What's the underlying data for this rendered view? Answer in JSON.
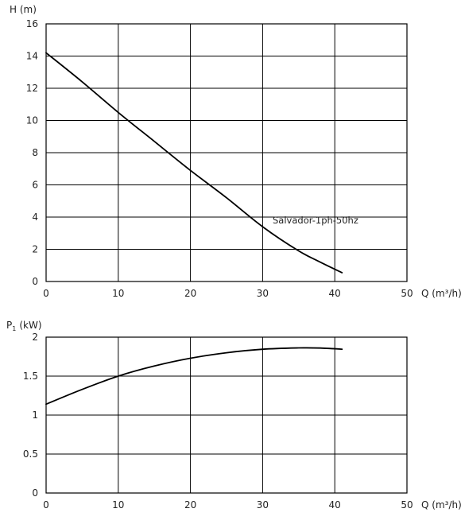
{
  "chart_data": [
    {
      "type": "line",
      "title": "",
      "xlabel": "Q (m³/h)",
      "ylabel": "H (m)",
      "xlim": [
        0,
        50
      ],
      "ylim": [
        0,
        16
      ],
      "x_ticks": [
        "0",
        "10",
        "20",
        "30",
        "40",
        "50"
      ],
      "y_ticks": [
        "0",
        "2",
        "4",
        "6",
        "8",
        "10",
        "12",
        "14",
        "16"
      ],
      "grid": true,
      "annotation": "Salvador-1ph-50hz",
      "series": [
        {
          "name": "",
          "x": [
            0,
            5,
            10,
            15,
            20,
            25,
            30,
            35,
            38,
            41
          ],
          "y": [
            14.2,
            12.4,
            10.5,
            8.7,
            6.9,
            5.2,
            3.4,
            1.9,
            1.2,
            0.55
          ]
        }
      ]
    },
    {
      "type": "line",
      "title": "",
      "xlabel": "Q (m³/h)",
      "ylabel": "P",
      "ylabel_subscript": "1",
      "ylabel_unit": "(kW)",
      "xlim": [
        0,
        50
      ],
      "ylim": [
        0,
        2
      ],
      "x_ticks": [
        "0",
        "10",
        "20",
        "30",
        "40",
        "50"
      ],
      "y_ticks": [
        "0",
        "0.5",
        "1",
        "1.5",
        "2"
      ],
      "grid": true,
      "series": [
        {
          "name": "",
          "x": [
            0,
            5,
            10,
            15,
            20,
            25,
            30,
            35,
            38,
            41
          ],
          "y": [
            1.14,
            1.33,
            1.5,
            1.63,
            1.73,
            1.8,
            1.845,
            1.862,
            1.86,
            1.845
          ]
        }
      ]
    }
  ]
}
